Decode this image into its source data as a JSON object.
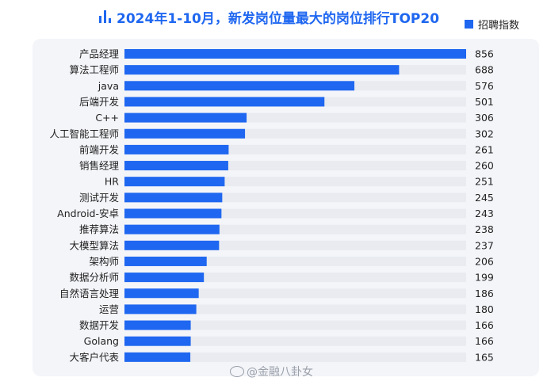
{
  "header": {
    "title": "2024年1-10月，新发岗位量最大的岗位排行TOP20"
  },
  "legend": {
    "label": "招聘指数",
    "color": "#1f67f0"
  },
  "colors": {
    "bar": "#1f67f0",
    "track": "#e9ebf0",
    "panel": "#f4f5f9",
    "text": "#222222"
  },
  "watermark": "@金融八卦女",
  "chart_data": {
    "type": "bar",
    "orientation": "horizontal",
    "title": "2024年1-10月，新发岗位量最大的岗位排行TOP20",
    "categories": [
      "产品经理",
      "算法工程师",
      "java",
      "后端开发",
      "C++",
      "人工智能工程师",
      "前端开发",
      "销售经理",
      "HR",
      "测试开发",
      "Android-安卓",
      "推荐算法",
      "大模型算法",
      "架构师",
      "数据分析师",
      "自然语言处理",
      "运营",
      "数据开发",
      "Golang",
      "大客户代表"
    ],
    "series": [
      {
        "name": "招聘指数",
        "values": [
          856,
          688,
          576,
          501,
          306,
          302,
          261,
          260,
          251,
          245,
          243,
          238,
          237,
          206,
          199,
          186,
          180,
          166,
          166,
          165
        ]
      }
    ],
    "xlim": [
      0,
      856
    ],
    "grid": false,
    "legend_position": "top-right"
  }
}
